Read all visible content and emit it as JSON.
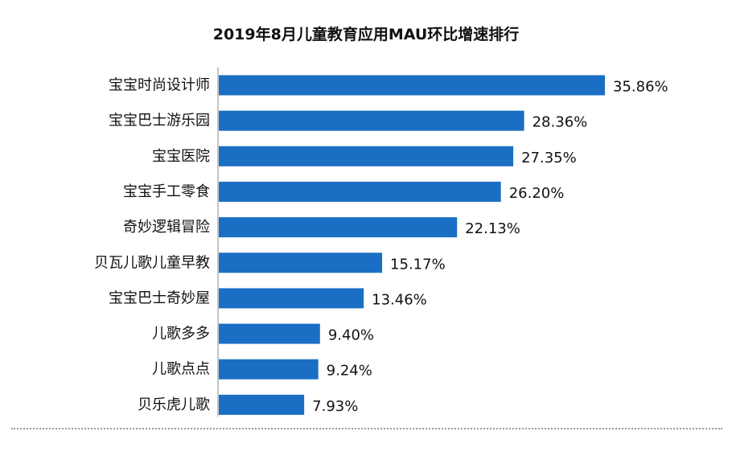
{
  "chart_data": {
    "type": "bar",
    "orientation": "horizontal",
    "title": "2019年8月儿童教育应用MAU环比增速排行",
    "categories": [
      "宝宝时尚设计师",
      "宝宝巴士游乐园",
      "宝宝医院",
      "宝宝手工零食",
      "奇妙逻辑冒险",
      "贝瓦儿歌儿童早教",
      "宝宝巴士奇妙屋",
      "儿歌多多",
      "儿歌点点",
      "贝乐虎儿歌"
    ],
    "values": [
      35.86,
      28.36,
      27.35,
      26.2,
      22.13,
      15.17,
      13.46,
      9.4,
      9.24,
      7.93
    ],
    "value_labels": [
      "35.86%",
      "28.36%",
      "27.35%",
      "26.20%",
      "22.13%",
      "15.17%",
      "13.46%",
      "9.40%",
      "9.24%",
      "7.93%"
    ],
    "xlim": [
      0,
      36
    ],
    "grid": false,
    "legend": "none",
    "bar_color": "#1a6fc4",
    "xlabel": "",
    "ylabel": ""
  }
}
